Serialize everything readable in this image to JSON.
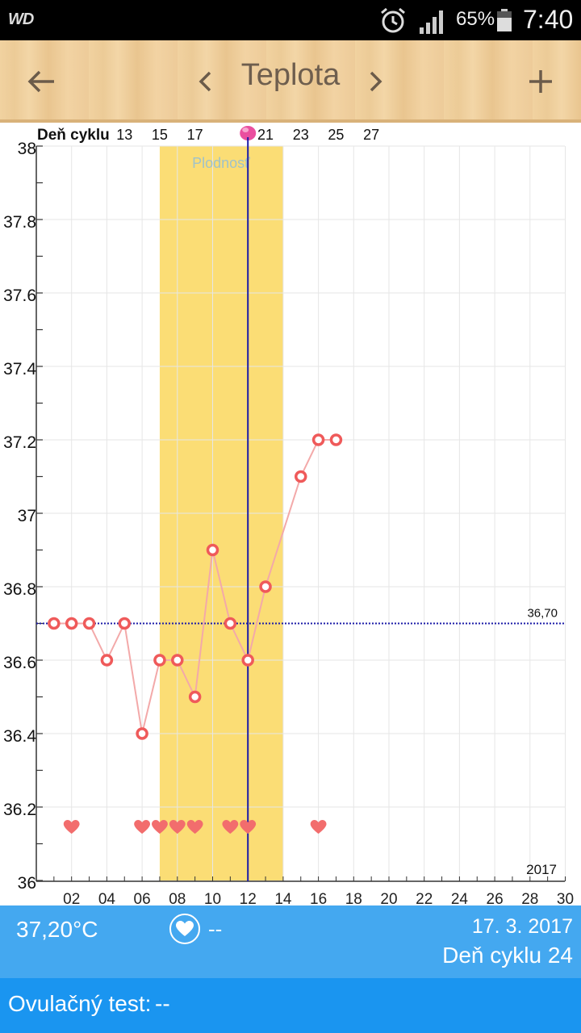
{
  "status_bar": {
    "carrier": "WD",
    "battery_percent": "65%",
    "time": "7:40",
    "icons": [
      "alarm-icon",
      "signal-icon",
      "battery-icon"
    ]
  },
  "app_bar": {
    "title": "Teplota",
    "icons": [
      "back-arrow-icon",
      "chevron-left-icon",
      "chevron-right-icon",
      "plus-icon"
    ]
  },
  "chart": {
    "cycle_day_label": "Deň cyklu",
    "cycle_day_ticks": [
      "13",
      "15",
      "17",
      "21",
      "23",
      "25",
      "27"
    ],
    "fertile_label": "Plodnosť",
    "coverline_label": "36,70",
    "year_label": "2017",
    "colors": {
      "fertile": "#fbdd75",
      "line": "#f3a9a9",
      "point": "#ef5a5a",
      "heart": "#f26d6d",
      "today": "#1c1ca8",
      "coverline": "#1c1ca8",
      "ovulation": "#ea4f9f"
    }
  },
  "chart_data": {
    "type": "line",
    "y_ticks": [
      "38",
      "37.8",
      "37.6",
      "37.4",
      "37.2",
      "37",
      "36.8",
      "36.6",
      "36.4",
      "36.2",
      "36"
    ],
    "x_ticks": [
      "02",
      "04",
      "06",
      "08",
      "10",
      "12",
      "14",
      "16",
      "18",
      "20",
      "22",
      "24",
      "26",
      "28",
      "30"
    ],
    "ylim": [
      36,
      38
    ],
    "xlim": [
      0,
      30
    ],
    "grid": true,
    "series": [
      {
        "x": [
          1,
          2,
          3,
          4,
          5,
          6,
          7,
          8,
          9,
          10,
          11,
          12,
          13,
          15,
          16,
          17
        ],
        "values": [
          36.7,
          36.7,
          36.7,
          36.6,
          36.7,
          36.4,
          36.6,
          36.6,
          36.5,
          36.9,
          36.7,
          36.6,
          36.8,
          37.1,
          37.2,
          37.2
        ]
      }
    ],
    "heart_days": [
      2,
      6,
      7,
      8,
      9,
      11,
      12,
      16
    ],
    "fertile_window": [
      7,
      14
    ],
    "today_day": 12,
    "ovulation_day": 12,
    "coverline": 36.7,
    "cycle_day_ticks_at": [
      5,
      7,
      9,
      13,
      15,
      17,
      19
    ],
    "cycle_day_offset": 8
  },
  "info": {
    "temperature": "37,20°C",
    "intercourse_value": "--",
    "date": "17. 3. 2017",
    "cycle_day": "Deň cyklu 24"
  },
  "ovulation_test": {
    "label": "Ovulačný test:",
    "value": "--"
  }
}
